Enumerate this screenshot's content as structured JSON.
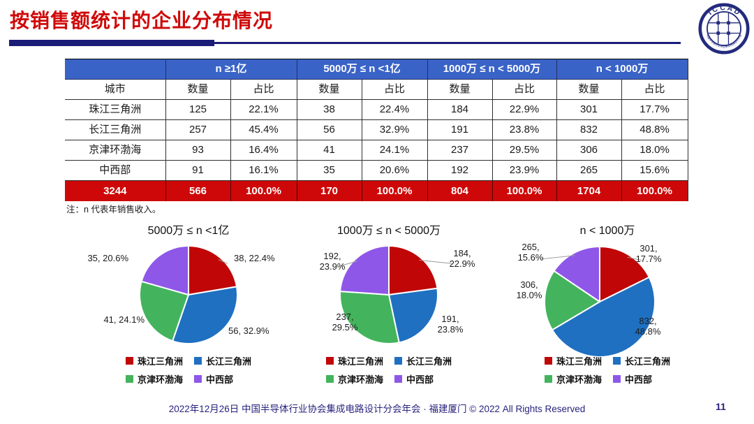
{
  "title": "按销售额统计的企业分布情况",
  "logo": {
    "text": "I C C A D",
    "ring_text": "中国半导体行业协会集成电路设计分会"
  },
  "table": {
    "col_groups": [
      "n ≥1亿",
      "5000万 ≤ n <1亿",
      "1000万 ≤ n < 5000万",
      "n < 1000万"
    ],
    "sub_headers": {
      "city": "城市",
      "count": "数量",
      "share": "占比"
    },
    "rows": [
      {
        "city": "珠江三角洲",
        "cells": [
          "125",
          "22.1%",
          "38",
          "22.4%",
          "184",
          "22.9%",
          "301",
          "17.7%"
        ]
      },
      {
        "city": "长江三角洲",
        "cells": [
          "257",
          "45.4%",
          "56",
          "32.9%",
          "191",
          "23.8%",
          "832",
          "48.8%"
        ]
      },
      {
        "city": "京津环渤海",
        "cells": [
          "93",
          "16.4%",
          "41",
          "24.1%",
          "237",
          "29.5%",
          "306",
          "18.0%"
        ]
      },
      {
        "city": "中西部",
        "cells": [
          "91",
          "16.1%",
          "35",
          "20.6%",
          "192",
          "23.9%",
          "265",
          "15.6%"
        ]
      }
    ],
    "total": {
      "city": "3244",
      "cells": [
        "566",
        "100.0%",
        "170",
        "100.0%",
        "804",
        "100.0%",
        "1704",
        "100.0%"
      ]
    }
  },
  "note": "注：n 代表年销售收入。",
  "legend": [
    "珠江三角洲",
    "长江三角洲",
    "京津环渤海",
    "中西部"
  ],
  "colors": {
    "regions": [
      "#c00606",
      "#1f70c1",
      "#43b45d",
      "#8e57e8"
    ],
    "title_red": "#cf0909",
    "navy": "#1b1b78",
    "header_blue": "#3a63c7",
    "total_red": "#ce0808",
    "footer_navy": "#29237e"
  },
  "chart_data": [
    {
      "type": "pie",
      "title": "5000万 ≤ n <1亿",
      "label_format": "inline",
      "series": [
        {
          "name": "珠江三角洲",
          "value": 38,
          "pct": "22.4%",
          "label_pos": [
            65,
            -52
          ],
          "leader": true
        },
        {
          "name": "长江三角洲",
          "value": 56,
          "pct": "32.9%",
          "label_pos": [
            57,
            52
          ]
        },
        {
          "name": "京津环渤海",
          "value": 41,
          "pct": "24.1%",
          "label_pos": [
            -63,
            36
          ]
        },
        {
          "name": "中西部",
          "value": 35,
          "pct": "20.6%",
          "label_pos": [
            -86,
            -52
          ]
        }
      ]
    },
    {
      "type": "pie",
      "title": "1000万 ≤ n < 5000万",
      "label_format": "twoline",
      "series": [
        {
          "name": "珠江三角洲",
          "value": 184,
          "pct": "22.9%",
          "label_pos": [
            105,
            -52
          ],
          "leader": true
        },
        {
          "name": "长江三角洲",
          "value": 191,
          "pct": "23.8%",
          "label_pos": [
            88,
            42
          ]
        },
        {
          "name": "京津环渤海",
          "value": 237,
          "pct": "29.5%",
          "label_pos": [
            -63,
            39
          ]
        },
        {
          "name": "中西部",
          "value": 192,
          "pct": "23.9%",
          "label_pos": [
            -81,
            -48
          ],
          "leader": true
        }
      ]
    },
    {
      "type": "pie",
      "title": "n < 1000万",
      "label_format": "twoline",
      "series": [
        {
          "name": "珠江三角洲",
          "value": 301,
          "pct": "17.7%",
          "label_pos": [
            70,
            -69
          ],
          "leader": true
        },
        {
          "name": "长江三角洲",
          "value": 832,
          "pct": "48.8%",
          "label_pos": [
            69,
            35
          ]
        },
        {
          "name": "京津环渤海",
          "value": 306,
          "pct": "18.0%",
          "label_pos": [
            -101,
            -17
          ]
        },
        {
          "name": "中西部",
          "value": 265,
          "pct": "15.6%",
          "label_pos": [
            -99,
            -71
          ],
          "leader": true
        }
      ]
    }
  ],
  "footer": {
    "text": "2022年12月26日 中国半导体行业协会集成电路设计分会年会 · 福建厦门 © 2022 All Rights Reserved",
    "page": "11"
  }
}
